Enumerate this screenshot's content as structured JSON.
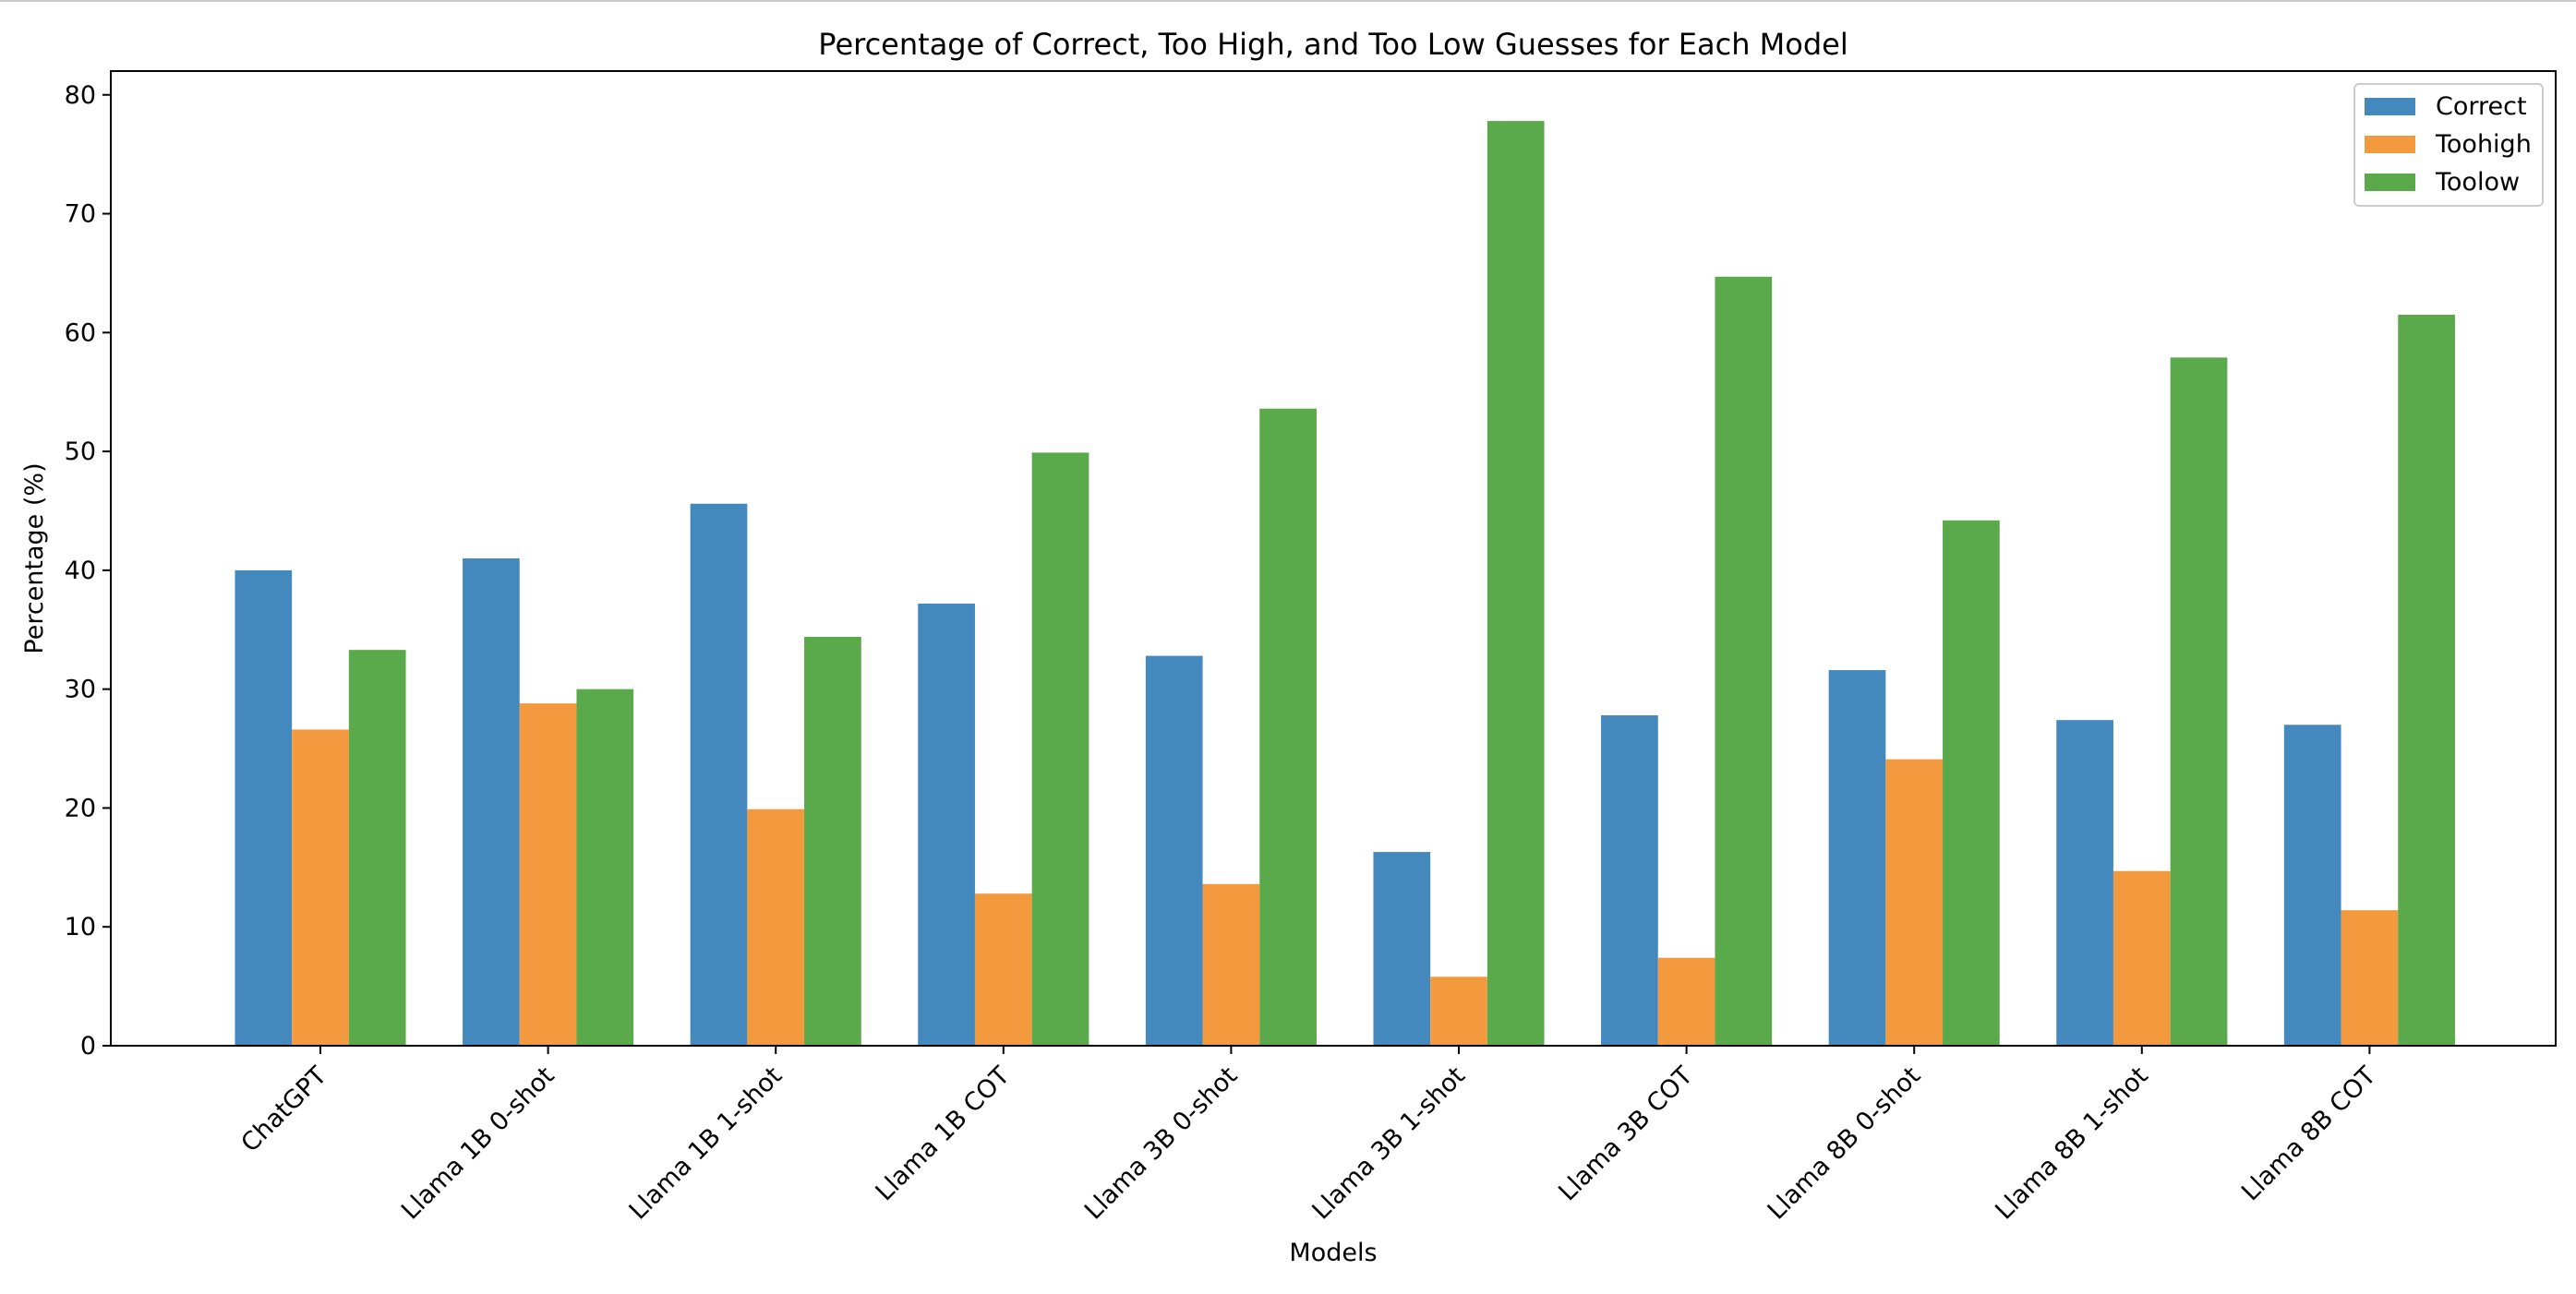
{
  "chart_data": {
    "type": "bar",
    "title": "Percentage of Correct, Too High, and Too Low Guesses for Each Model",
    "xlabel": "Models",
    "ylabel": "Percentage (%)",
    "ylim": [
      0,
      82
    ],
    "yticks": [
      0,
      10,
      20,
      30,
      40,
      50,
      60,
      70,
      80
    ],
    "grid": false,
    "legend_position": "top-right",
    "categories": [
      "ChatGPT",
      "Llama 1B 0-shot",
      "Llama 1B 1-shot",
      "Llama 1B COT",
      "Llama 3B 0-shot",
      "Llama 3B 1-shot",
      "Llama 3B COT",
      "Llama 8B 0-shot",
      "Llama 8B 1-shot",
      "Llama 8B COT"
    ],
    "series": [
      {
        "name": "Correct",
        "color": "#4389be",
        "values": [
          40.0,
          41.0,
          45.6,
          37.2,
          32.8,
          16.3,
          27.8,
          31.6,
          27.4,
          27.0
        ]
      },
      {
        "name": "Toohigh",
        "color": "#f39a3e",
        "values": [
          26.6,
          28.8,
          19.9,
          12.8,
          13.6,
          5.8,
          7.4,
          24.1,
          14.7,
          11.4
        ]
      },
      {
        "name": "Toolow",
        "color": "#5aa94b",
        "values": [
          33.3,
          30.0,
          34.4,
          49.9,
          53.6,
          77.8,
          64.7,
          44.2,
          57.9,
          61.5
        ]
      }
    ]
  }
}
